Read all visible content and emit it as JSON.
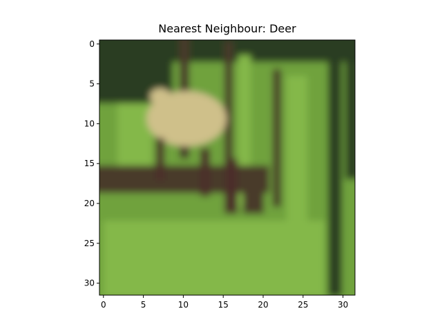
{
  "title": "Nearest Neighbour: Deer",
  "image": {
    "subject": "deer standing in green grass and forest",
    "palette": {
      "grass": "#6fa23c",
      "grass_light": "#84b84a",
      "forest_dark": "#2c3e22",
      "trunk": "#4a3a2a",
      "deer_body": "#cfc08a",
      "deer_leg": "#4b2f2a"
    }
  },
  "axes": {
    "x_ticks": [
      "0",
      "5",
      "10",
      "15",
      "20",
      "25",
      "30"
    ],
    "y_ticks": [
      "0",
      "5",
      "10",
      "15",
      "20",
      "25",
      "30"
    ],
    "pixel_grid": 32
  }
}
